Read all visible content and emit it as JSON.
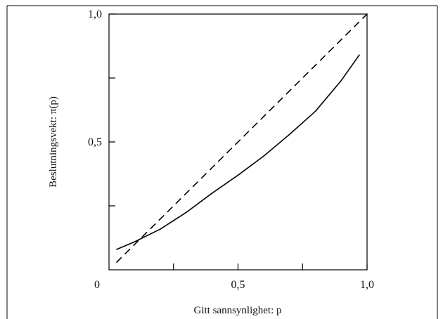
{
  "chart_data": {
    "type": "line",
    "title": "",
    "xlabel": "Gitt sannsynlighet: p",
    "ylabel": "Beslutningsvekt: π(p)",
    "xlim": [
      0,
      1
    ],
    "ylim": [
      0,
      1
    ],
    "x_ticks": [
      {
        "value": 0.25,
        "label": ""
      },
      {
        "value": 0.5,
        "label": "0,5"
      },
      {
        "value": 0.75,
        "label": ""
      },
      {
        "value": 1.0,
        "label": "1,0"
      }
    ],
    "y_ticks": [
      {
        "value": 0.25,
        "label": ""
      },
      {
        "value": 0.5,
        "label": "0,5"
      },
      {
        "value": 0.75,
        "label": ""
      },
      {
        "value": 1.0,
        "label": "1,0"
      }
    ],
    "origin_label": "0",
    "grid": false,
    "series": [
      {
        "style": "solid",
        "x": [
          0.03,
          0.1,
          0.2,
          0.3,
          0.4,
          0.5,
          0.6,
          0.7,
          0.8,
          0.9,
          0.97
        ],
        "y": [
          0.08,
          0.11,
          0.16,
          0.225,
          0.3,
          0.37,
          0.445,
          0.53,
          0.62,
          0.74,
          0.84
        ]
      },
      {
        "style": "dashed",
        "x": [
          0.03,
          1.0
        ],
        "y": [
          0.03,
          1.0
        ]
      }
    ]
  }
}
